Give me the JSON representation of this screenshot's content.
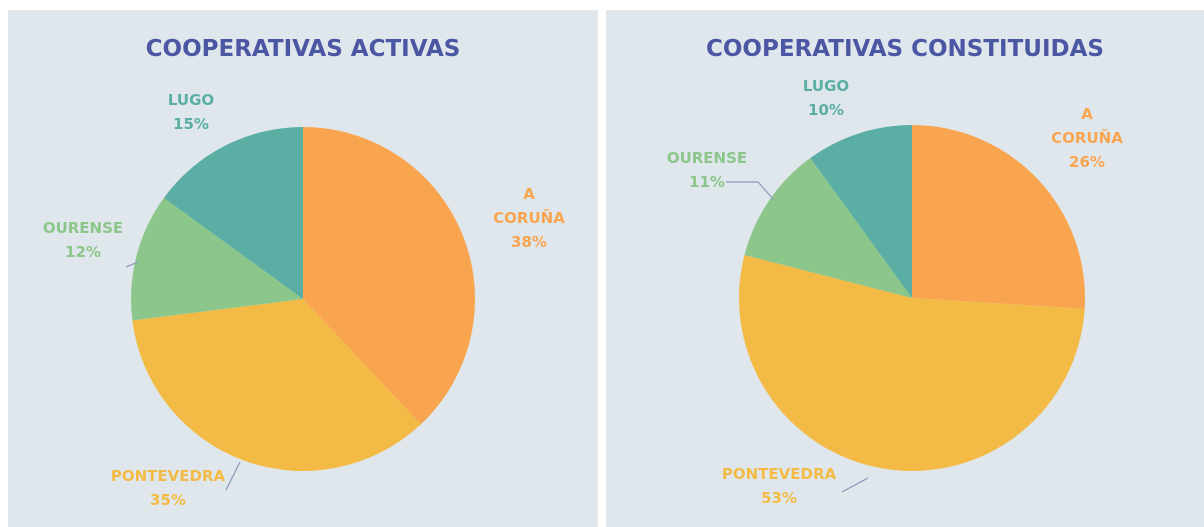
{
  "chart_data": [
    {
      "type": "pie",
      "title": "COOPERATIVAS ACTIVAS",
      "categories": [
        "A CORUÑA",
        "PONTEVEDRA",
        "OURENSE",
        "LUGO"
      ],
      "values": [
        38,
        35,
        12,
        15
      ],
      "value_labels": [
        "38%",
        "35%",
        "12%",
        "15%"
      ],
      "colors": [
        "#f9a54f",
        "#f3bb45",
        "#8cc68a",
        "#5aaea3"
      ]
    },
    {
      "type": "pie",
      "title": "COOPERATIVAS CONSTITUIDAS",
      "categories": [
        "A CORUÑA",
        "PONTEVEDRA",
        "OURENSE",
        "LUGO"
      ],
      "values": [
        26,
        53,
        11,
        10
      ],
      "value_labels": [
        "26%",
        "53%",
        "11%",
        "10%"
      ],
      "colors": [
        "#f9a54f",
        "#f3bb45",
        "#8cc68a",
        "#5aaea3"
      ]
    }
  ]
}
